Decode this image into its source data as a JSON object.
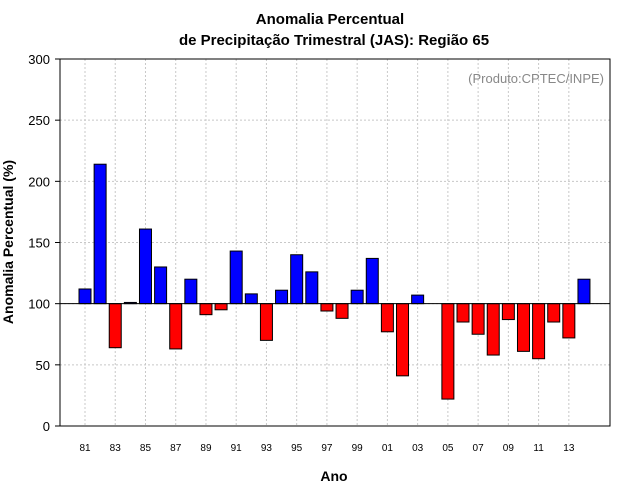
{
  "chart_data": {
    "type": "bar",
    "title_line1": "Anomalia Percentual",
    "title_line2": "de Precipitação Trimestral (JAS): Região 65",
    "xlabel": "Ano",
    "ylabel": "Anomalia Percentual (%)",
    "credit": "(Produto:CPTEC/INPE)",
    "ylim": [
      0,
      300
    ],
    "yticks": [
      0,
      50,
      100,
      150,
      200,
      250,
      300
    ],
    "baseline": 100,
    "categories": [
      "81",
      "82",
      "83",
      "84",
      "85",
      "86",
      "87",
      "88",
      "89",
      "90",
      "91",
      "92",
      "93",
      "94",
      "95",
      "96",
      "97",
      "98",
      "99",
      "00",
      "01",
      "02",
      "03",
      "04",
      "05",
      "06",
      "07",
      "08",
      "09",
      "10",
      "11",
      "12",
      "13",
      "14"
    ],
    "xtick_labels": [
      "81",
      "83",
      "85",
      "87",
      "89",
      "91",
      "93",
      "95",
      "97",
      "99",
      "01",
      "03",
      "05",
      "07",
      "09",
      "11",
      "13"
    ],
    "values": [
      112,
      214,
      64,
      101,
      161,
      130,
      63,
      120,
      91,
      95,
      143,
      108,
      70,
      111,
      140,
      126,
      94,
      88,
      111,
      137,
      77,
      41,
      107,
      100,
      22,
      85,
      75,
      58,
      87,
      61,
      55,
      85,
      72,
      120
    ],
    "colors": {
      "above": "#0000ff",
      "below": "#ff0000",
      "grid": "#c8c8c8"
    },
    "grid": true
  }
}
